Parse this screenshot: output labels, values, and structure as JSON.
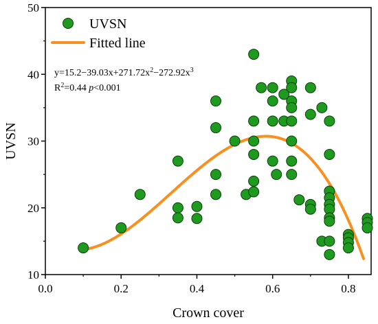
{
  "chart_data": {
    "type": "scatter",
    "xlabel": "Crown cover",
    "ylabel": "UVSN",
    "xlim": [
      0.0,
      0.86
    ],
    "ylim": [
      10,
      50
    ],
    "xticks": [
      "0.0",
      "0.2",
      "0.4",
      "0.6",
      "0.8"
    ],
    "xtick_values": [
      0.0,
      0.2,
      0.4,
      0.6,
      0.8
    ],
    "yticks": [
      "10",
      "20",
      "30",
      "40",
      "50"
    ],
    "ytick_values": [
      10,
      20,
      30,
      40,
      50
    ],
    "grid": false,
    "legend_placement": "top-left",
    "colors": {
      "marker_fill": "#1e9a1e",
      "marker_edge": "#0a3d0a",
      "fit_line": "#f7901e",
      "axis": "#000000"
    },
    "series": [
      {
        "name": "UVSN",
        "kind": "scatter",
        "points": [
          [
            0.1,
            14.0
          ],
          [
            0.2,
            17.0
          ],
          [
            0.25,
            22.0
          ],
          [
            0.35,
            27.0
          ],
          [
            0.35,
            20.0
          ],
          [
            0.35,
            18.5
          ],
          [
            0.4,
            20.2
          ],
          [
            0.4,
            18.4
          ],
          [
            0.45,
            36.0
          ],
          [
            0.45,
            32.0
          ],
          [
            0.45,
            25.0
          ],
          [
            0.45,
            22.0
          ],
          [
            0.5,
            30.0
          ],
          [
            0.53,
            22.0
          ],
          [
            0.55,
            43.0
          ],
          [
            0.55,
            33.0
          ],
          [
            0.55,
            30.0
          ],
          [
            0.55,
            28.0
          ],
          [
            0.55,
            24.0
          ],
          [
            0.55,
            22.4
          ],
          [
            0.57,
            38.0
          ],
          [
            0.6,
            38.0
          ],
          [
            0.6,
            36.0
          ],
          [
            0.6,
            33.0
          ],
          [
            0.6,
            27.0
          ],
          [
            0.61,
            25.0
          ],
          [
            0.63,
            37.0
          ],
          [
            0.63,
            33.0
          ],
          [
            0.65,
            39.0
          ],
          [
            0.65,
            38.0
          ],
          [
            0.65,
            36.0
          ],
          [
            0.65,
            35.0
          ],
          [
            0.65,
            33.0
          ],
          [
            0.65,
            30.0
          ],
          [
            0.65,
            27.0
          ],
          [
            0.65,
            25.0
          ],
          [
            0.67,
            21.2
          ],
          [
            0.7,
            38.0
          ],
          [
            0.7,
            34.0
          ],
          [
            0.7,
            20.5
          ],
          [
            0.7,
            19.8
          ],
          [
            0.73,
            35.0
          ],
          [
            0.73,
            15.0
          ],
          [
            0.75,
            33.0
          ],
          [
            0.75,
            28.0
          ],
          [
            0.75,
            22.5
          ],
          [
            0.75,
            21.5
          ],
          [
            0.75,
            20.5
          ],
          [
            0.75,
            19.8
          ],
          [
            0.75,
            18.5
          ],
          [
            0.75,
            18.0
          ],
          [
            0.75,
            15.0
          ],
          [
            0.75,
            13.0
          ],
          [
            0.8,
            16.0
          ],
          [
            0.8,
            15.5
          ],
          [
            0.8,
            14.8
          ],
          [
            0.8,
            14.0
          ],
          [
            0.85,
            18.4
          ],
          [
            0.85,
            17.8
          ],
          [
            0.85,
            17.0
          ]
        ]
      },
      {
        "name": "Fitted line",
        "kind": "line",
        "x_range": [
          0.1,
          0.84
        ],
        "coefficients": [
          15.2,
          -39.03,
          271.72,
          -272.92
        ]
      }
    ],
    "equation": {
      "line1": "y=15.2−39.03x+271.72x",
      "line1_sup1": "2",
      "line1_mid": "−272.92x",
      "line1_sup2": "3",
      "line2_a": "R",
      "line2_sup": "2",
      "line2_b": "=0.44 ",
      "line2_p": "p",
      "line2_c": "<0.001"
    }
  }
}
